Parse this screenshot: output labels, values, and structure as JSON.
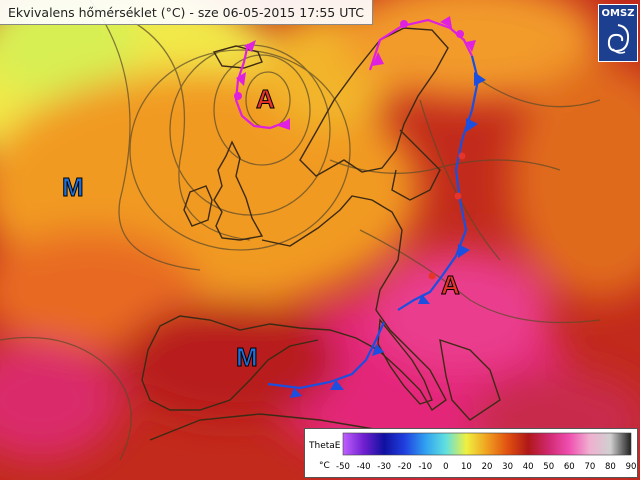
{
  "title": "Ekvivalens hőmérséklet (°C) -  sze 06-05-2015 17:55 UTC",
  "logo": {
    "text": "OMSZ",
    "icon": "swirl-emblem-icon"
  },
  "pressure_centers": [
    {
      "label": "A",
      "kind": "high",
      "color": "#e8332a"
    },
    {
      "label": "A",
      "kind": "high",
      "color": "#e8332a"
    },
    {
      "label": "M",
      "kind": "low",
      "color": "#1e6fd9"
    },
    {
      "label": "M",
      "kind": "low",
      "color": "#1e6fd9"
    }
  ],
  "fronts": [
    {
      "type": "occluded",
      "color": "#e020e0"
    },
    {
      "type": "occluded",
      "color": "#e020e0"
    },
    {
      "type": "cold",
      "color": "#1a4fe0"
    },
    {
      "type": "cold",
      "color": "#1a4fe0"
    }
  ],
  "legend": {
    "name": "ThetaE",
    "unit": "°C",
    "ticks": [
      "-50",
      "-40",
      "-30",
      "-20",
      "-10",
      "0",
      "10",
      "20",
      "30",
      "40",
      "50",
      "60",
      "70",
      "80",
      "90"
    ],
    "colors": [
      "#c060ff",
      "#7020d0",
      "#1010a0",
      "#2040e0",
      "#30a0f0",
      "#60e0e0",
      "#f0f040",
      "#f0a020",
      "#e05010",
      "#b01818",
      "#d02870",
      "#f050b0",
      "#f0b0d0",
      "#d0d0d0",
      "#202020"
    ]
  }
}
